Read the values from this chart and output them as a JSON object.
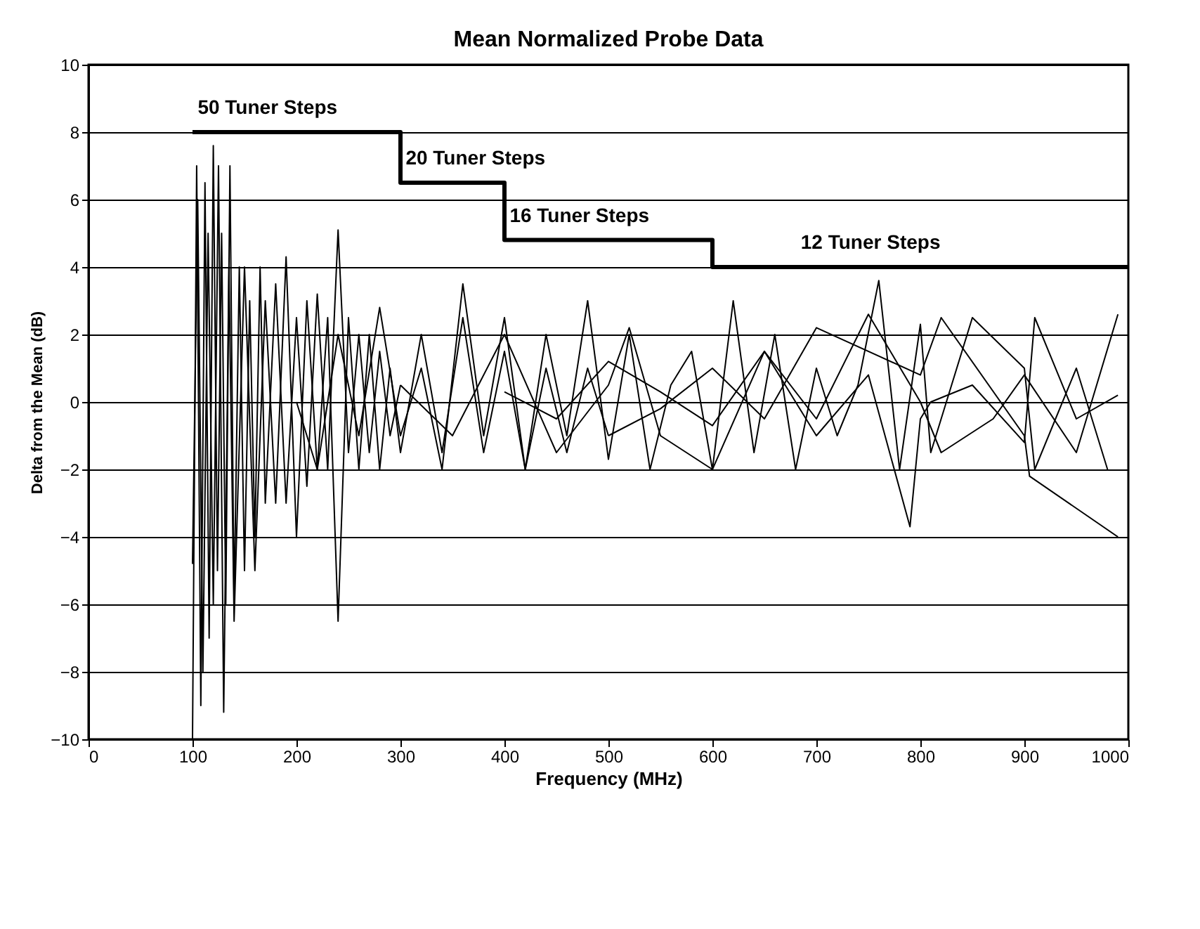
{
  "chart_data": {
    "type": "line",
    "title": "Mean Normalized Probe Data",
    "xlabel": "Frequency (MHz)",
    "ylabel": "Delta from the Mean (dB)",
    "xlim": [
      0,
      1000
    ],
    "xticks": [
      0,
      100,
      200,
      300,
      400,
      500,
      600,
      700,
      800,
      900,
      1000
    ],
    "ylim": [
      -10,
      10
    ],
    "yticks": [
      -10,
      -8,
      -6,
      -4,
      -2,
      0,
      2,
      4,
      6,
      8,
      10
    ],
    "grid": "y",
    "marker": "none",
    "line_style": "solid",
    "annotations": [
      "50 Tuner Steps",
      "20 Tuner Steps",
      "16 Tuner Steps",
      "12 Tuner Steps"
    ],
    "series": [
      {
        "type": "step",
        "color": "#000000",
        "x": [
          100,
          300,
          400,
          600,
          1000
        ],
        "values": [
          8,
          6.5,
          4.8,
          4,
          4
        ]
      },
      {
        "color": "#000000",
        "x": [
          100,
          104,
          108,
          112,
          116,
          120,
          124,
          128,
          132,
          136,
          140,
          145,
          150,
          155,
          160,
          165,
          170,
          180,
          190,
          200,
          210,
          220,
          230,
          240,
          250,
          260,
          270,
          280,
          290,
          300
        ],
        "values": [
          -10,
          7,
          -9,
          6.5,
          -7,
          7.6,
          -5,
          5,
          -6,
          7,
          -6,
          4,
          -5,
          3,
          -4,
          4,
          -3,
          3.5,
          -3,
          2.5,
          -2.5,
          3.2,
          -2,
          5.1,
          -1.5,
          2,
          -1.5,
          1.5,
          -1,
          0.5
        ]
      },
      {
        "color": "#000000",
        "x": [
          100,
          105,
          110,
          115,
          120,
          125,
          130,
          135,
          140,
          150,
          160,
          170,
          180,
          190,
          200,
          210,
          220,
          230,
          240,
          250,
          260,
          270,
          280,
          290,
          300,
          320,
          340,
          360,
          380,
          400,
          420,
          440,
          460,
          480,
          500
        ],
        "values": [
          -4.8,
          6,
          -8,
          5,
          -6,
          7,
          -9.2,
          4,
          -6.5,
          4,
          -5,
          3,
          -3,
          4.3,
          -4,
          3,
          -2,
          2.5,
          -6.5,
          2.5,
          -2,
          2,
          -2,
          1,
          -1.5,
          2,
          -1.5,
          2.5,
          -1.5,
          1.5,
          -2,
          1,
          -1.5,
          1,
          -1
        ]
      },
      {
        "color": "#000000",
        "x": [
          200,
          220,
          240,
          260,
          280,
          300,
          320,
          340,
          360,
          380,
          400,
          420,
          440,
          460,
          480,
          500,
          520,
          540,
          560,
          580,
          600,
          620,
          640,
          660,
          680,
          700,
          720,
          740,
          760,
          780,
          800,
          810,
          850,
          900,
          910,
          950,
          980
        ],
        "values": [
          0,
          -2,
          2,
          -1,
          2.8,
          -1,
          1,
          -2,
          3.5,
          -1,
          2.5,
          -2,
          2,
          -1,
          3,
          -1.7,
          2,
          -2,
          0.5,
          1.5,
          -2,
          3,
          -1.5,
          2,
          -2,
          1,
          -1,
          0.5,
          3.6,
          -2,
          2.3,
          -1.5,
          2.5,
          1,
          -2,
          1,
          -2
        ]
      },
      {
        "color": "#000000",
        "x": [
          300,
          350,
          400,
          450,
          500,
          520,
          550,
          600,
          650,
          700,
          750,
          790,
          800,
          810,
          850,
          900,
          910,
          950,
          990
        ],
        "values": [
          0.5,
          -1,
          2,
          -1.5,
          0.5,
          2.2,
          -1,
          -2,
          1.5,
          -1,
          0.8,
          -3.7,
          -0.5,
          0,
          0.5,
          -1.2,
          2.5,
          -0.5,
          0.2
        ]
      },
      {
        "color": "#000000",
        "x": [
          400,
          450,
          500,
          550,
          600,
          650,
          700,
          750,
          800,
          820,
          870,
          900,
          950,
          990
        ],
        "values": [
          0.3,
          -0.5,
          1.2,
          0.3,
          -0.7,
          1.5,
          -0.5,
          2.6,
          0,
          -1.5,
          -0.5,
          0.8,
          -1.5,
          2.6
        ]
      },
      {
        "color": "#000000",
        "x": [
          500,
          550,
          600,
          650,
          700,
          800,
          820,
          900,
          905,
          990
        ],
        "values": [
          -1,
          -0.2,
          1,
          -0.5,
          2.2,
          0.8,
          2.5,
          -1,
          -2.2,
          -4
        ]
      }
    ]
  }
}
